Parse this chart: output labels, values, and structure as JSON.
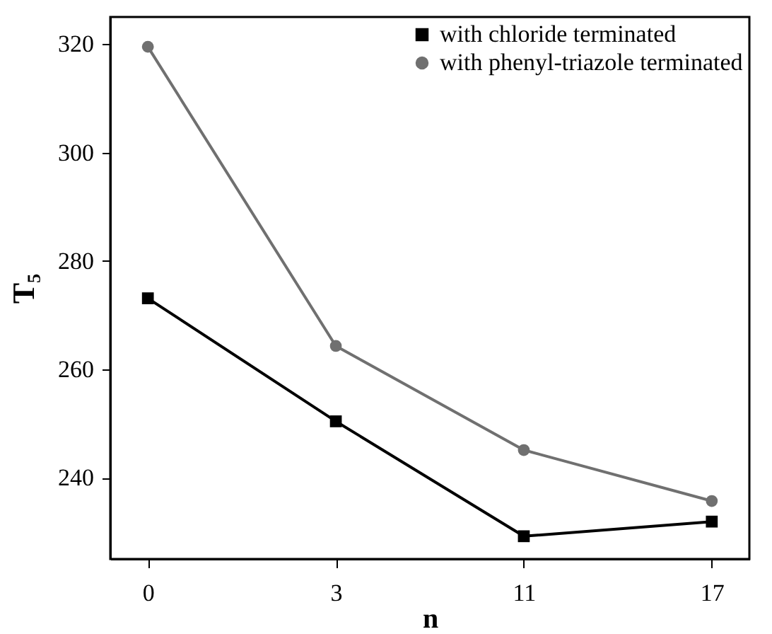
{
  "chart_data": {
    "type": "line",
    "xlabel": "n",
    "ylabel": "T₅",
    "categories": [
      "0",
      "3",
      "11",
      "17"
    ],
    "series": [
      {
        "name": "with chloride terminated",
        "color": "#000000",
        "marker": "square",
        "values": [
          273.1,
          250.4,
          229.2,
          231.9
        ]
      },
      {
        "name": "with phenyl-triazole terminated",
        "color": "#707070",
        "marker": "circle",
        "values": [
          319.5,
          264.3,
          245.1,
          235.7
        ]
      }
    ],
    "ylim": [
      225,
      325
    ],
    "yticks": [
      240,
      260,
      280,
      300,
      320
    ],
    "legend": "top right",
    "grid": false
  }
}
